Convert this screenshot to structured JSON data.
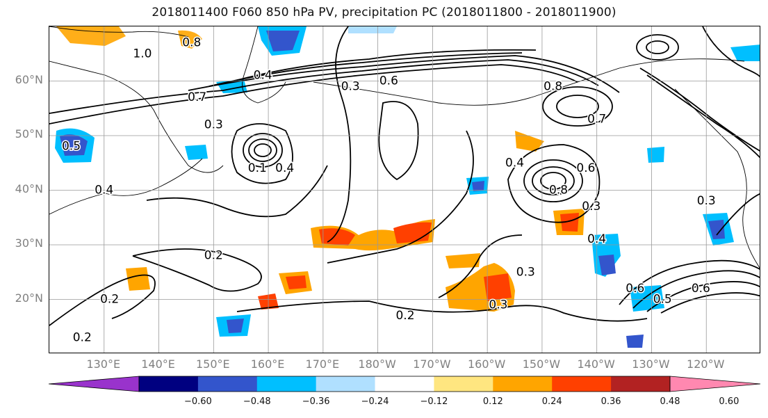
{
  "title": "2018011400 F060 850 hPa PV, precipitation PC (2018011800 - 2018011900)",
  "map": {
    "lat_labels": [
      "60°N",
      "50°N",
      "40°N",
      "30°N",
      "20°N"
    ],
    "lat_values": [
      60,
      50,
      40,
      30,
      20
    ],
    "lon_labels": [
      "130°E",
      "140°E",
      "150°E",
      "160°E",
      "170°E",
      "180°W",
      "170°W",
      "160°W",
      "150°W",
      "140°W",
      "130°W",
      "120°W"
    ],
    "lon_values": [
      130,
      140,
      150,
      160,
      170,
      180,
      190,
      200,
      210,
      220,
      230,
      240
    ],
    "extent": {
      "lon_min": 120,
      "lon_max": 250,
      "lat_min": 10,
      "lat_max": 70
    },
    "contour_labels": [
      {
        "text": "0.8",
        "lon": 146,
        "lat": 67
      },
      {
        "text": "1.0",
        "lon": 137,
        "lat": 65
      },
      {
        "text": "0.4",
        "lon": 159,
        "lat": 61
      },
      {
        "text": "0.6",
        "lon": 182,
        "lat": 60
      },
      {
        "text": "0.3",
        "lon": 175,
        "lat": 59
      },
      {
        "text": "0.7",
        "lon": 147,
        "lat": 57
      },
      {
        "text": "0.3",
        "lon": 150,
        "lat": 52
      },
      {
        "text": "0.5",
        "lon": 124,
        "lat": 48
      },
      {
        "text": "0.4",
        "lon": 130,
        "lat": 40
      },
      {
        "text": "0.1",
        "lon": 158,
        "lat": 44
      },
      {
        "text": "0.4",
        "lon": 163,
        "lat": 44
      },
      {
        "text": "0.8",
        "lon": 212,
        "lat": 59
      },
      {
        "text": "0.7",
        "lon": 220,
        "lat": 53
      },
      {
        "text": "0.4",
        "lon": 205,
        "lat": 45
      },
      {
        "text": "0.6",
        "lon": 218,
        "lat": 44
      },
      {
        "text": "0.8",
        "lon": 213,
        "lat": 40
      },
      {
        "text": "0.3",
        "lon": 219,
        "lat": 37
      },
      {
        "text": "0.4",
        "lon": 220,
        "lat": 31
      },
      {
        "text": "0.3",
        "lon": 207,
        "lat": 25
      },
      {
        "text": "0.6",
        "lon": 227,
        "lat": 22
      },
      {
        "text": "0.5",
        "lon": 232,
        "lat": 20
      },
      {
        "text": "0.6",
        "lon": 239,
        "lat": 22
      },
      {
        "text": "0.3",
        "lon": 202,
        "lat": 19
      },
      {
        "text": "0.2",
        "lon": 150,
        "lat": 28
      },
      {
        "text": "0.2",
        "lon": 131,
        "lat": 20
      },
      {
        "text": "0.2",
        "lon": 185,
        "lat": 17
      },
      {
        "text": "0.2",
        "lon": 126,
        "lat": 13
      },
      {
        "text": "0.3",
        "lon": 240,
        "lat": 38
      }
    ]
  },
  "colorbar": {
    "colors": [
      "#9933cc",
      "#000080",
      "#3355cc",
      "#00bfff",
      "#b0e0ff",
      "#ffffff",
      "#ffe680",
      "#ffa500",
      "#ff4000",
      "#b22222",
      "#ff88b0"
    ],
    "tick_labels": [
      "−0.60",
      "−0.48",
      "−0.36",
      "−0.24",
      "−0.12",
      "0.12",
      "0.24",
      "0.36",
      "0.48",
      "0.60"
    ]
  }
}
